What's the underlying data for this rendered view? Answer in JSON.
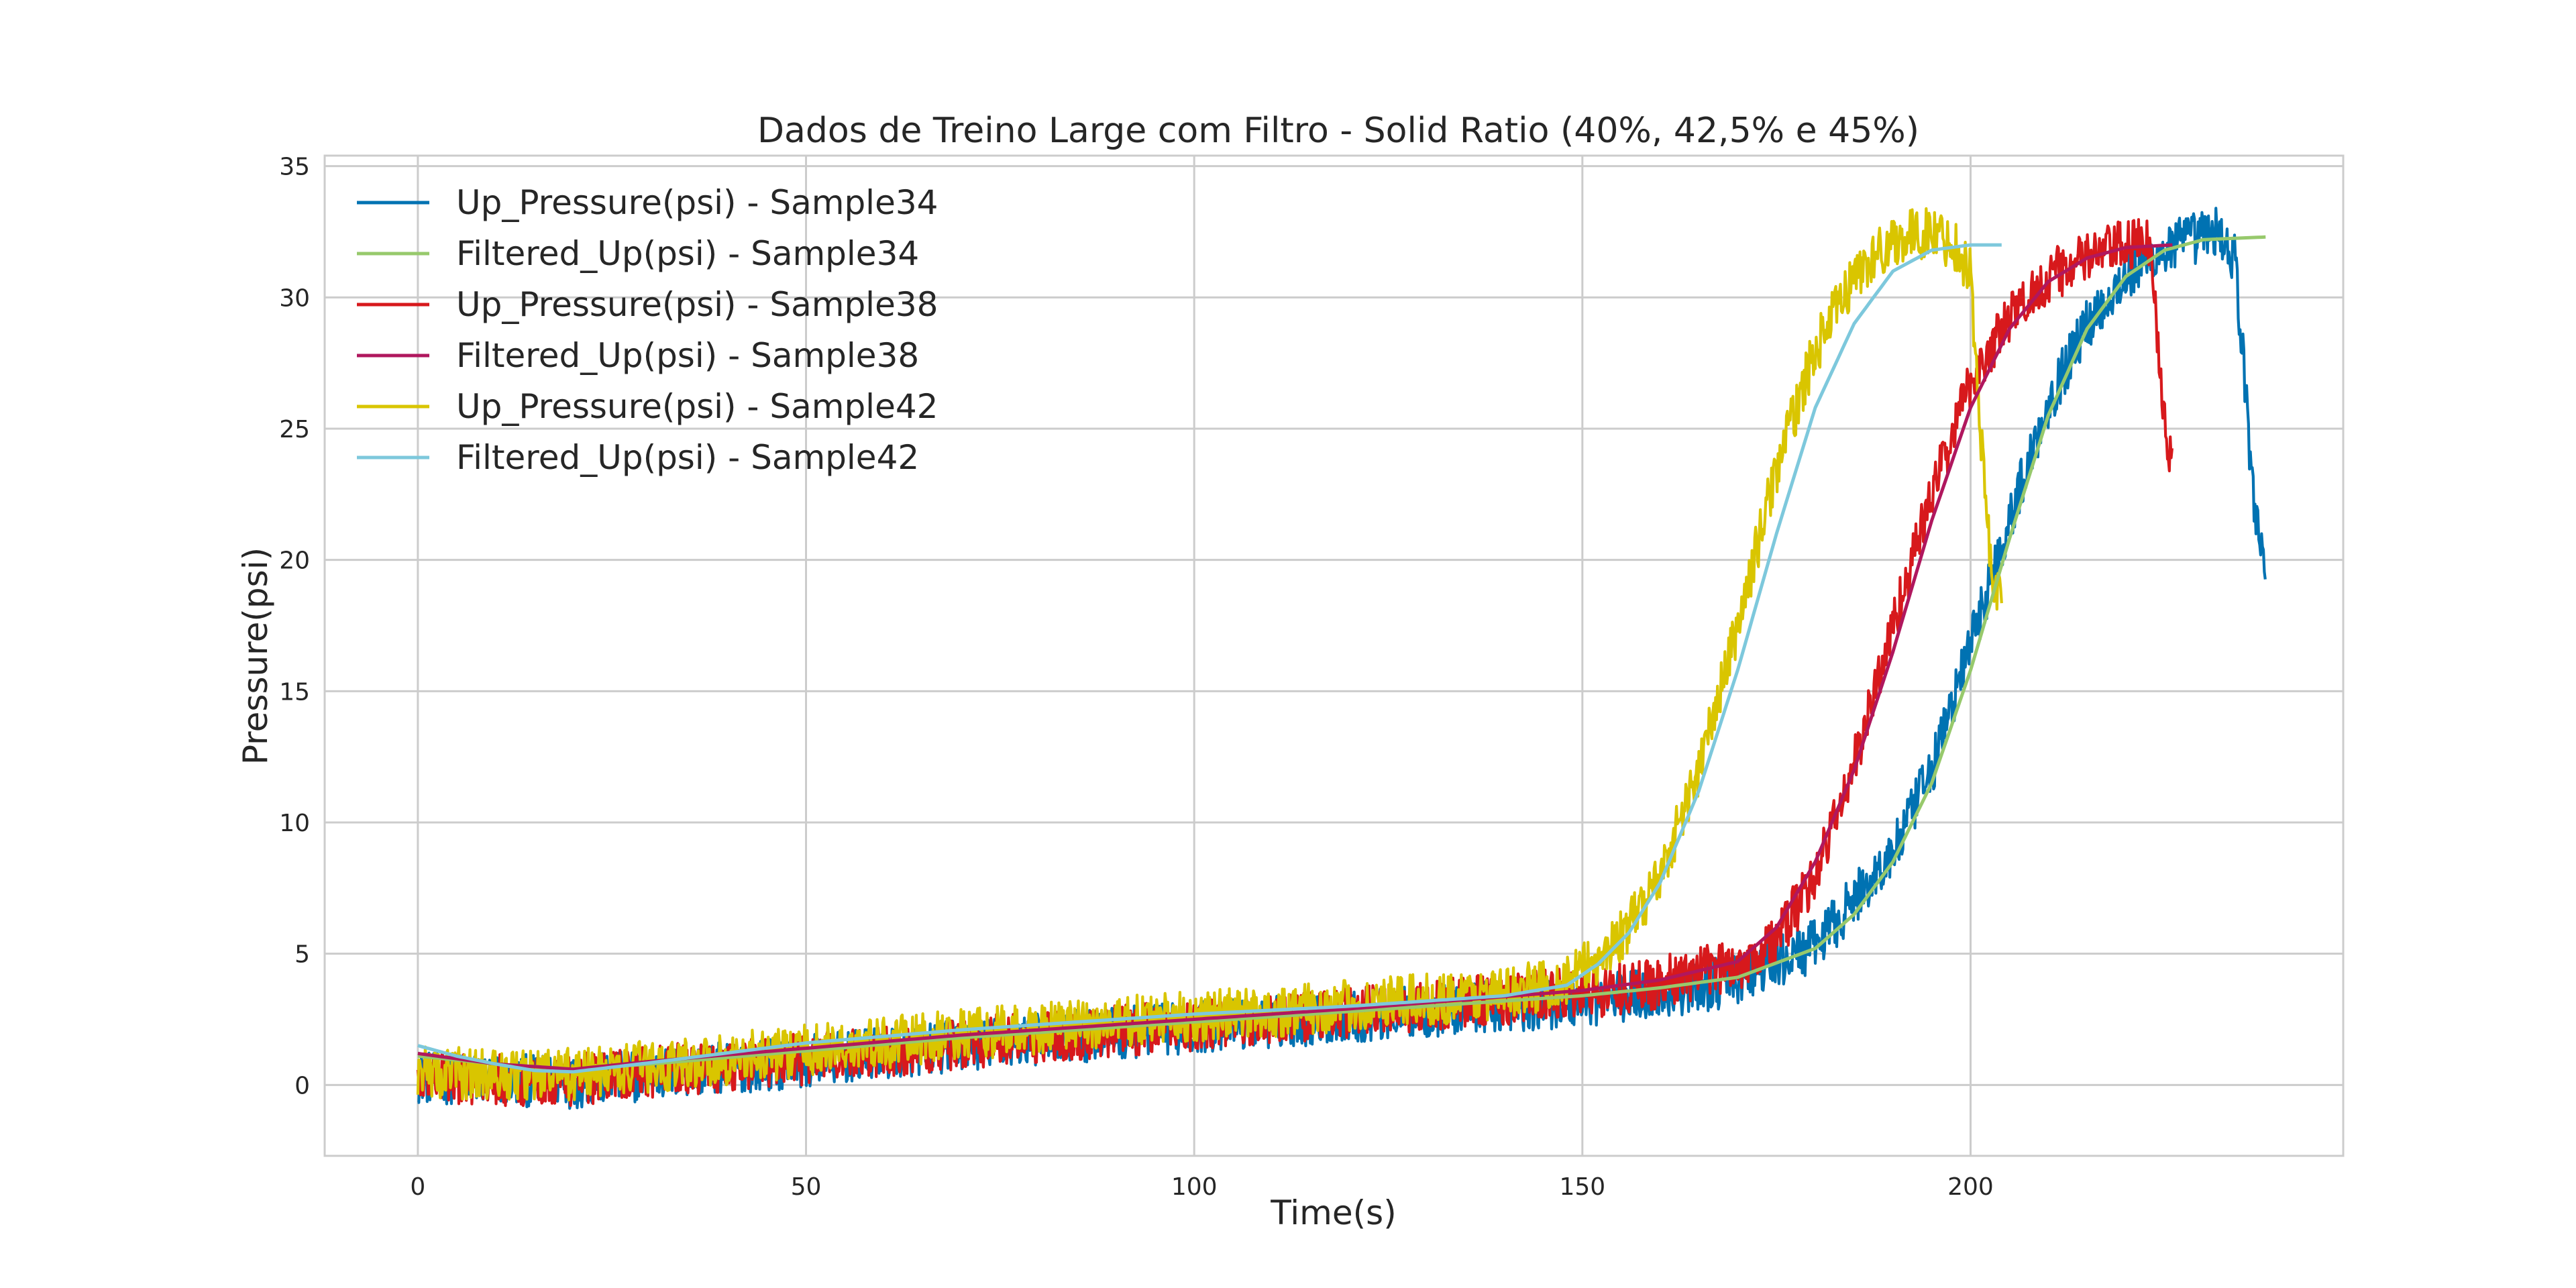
{
  "chart_data": {
    "type": "line",
    "title": "Dados de Treino Large com Filtro - Solid Ratio (40%, 42,5% e 45%)",
    "xlabel": "Time(s)",
    "ylabel": "Pressure(psi)",
    "xlim": [
      -12,
      248
    ],
    "ylim": [
      -2.7,
      35.4
    ],
    "xticks": [
      0,
      50,
      100,
      150,
      200
    ],
    "yticks": [
      0,
      5,
      10,
      15,
      20,
      25,
      30,
      35
    ],
    "grid": true,
    "legend_position": "top-left",
    "series": [
      {
        "name": "Up_Pressure(psi) - Sample34",
        "color": "#0072b2",
        "kind": "raw",
        "noise": 1.0,
        "x": [
          0,
          10,
          20,
          30,
          50,
          70,
          100,
          120,
          150,
          160,
          170,
          180,
          190,
          195,
          200,
          205,
          210,
          215,
          220,
          225,
          228,
          232,
          234,
          235,
          236,
          237,
          238
        ],
        "y": [
          0.3,
          0.2,
          0.1,
          0.4,
          0.9,
          1.5,
          2.2,
          2.6,
          3.2,
          3.5,
          4.0,
          5.3,
          8.8,
          12.0,
          16.8,
          21.5,
          26.0,
          29.0,
          30.8,
          31.8,
          32.2,
          32.5,
          31.5,
          28.0,
          24.0,
          21.0,
          20.0
        ]
      },
      {
        "name": "Filtered_Up(psi) - Sample34",
        "color": "#97c96c",
        "kind": "filtered",
        "x": [
          0,
          10,
          20,
          30,
          50,
          70,
          100,
          120,
          150,
          160,
          170,
          180,
          185,
          190,
          195,
          200,
          205,
          210,
          215,
          220,
          225,
          230,
          238
        ],
        "y": [
          1.1,
          0.8,
          0.6,
          0.8,
          1.3,
          1.8,
          2.4,
          2.8,
          3.4,
          3.7,
          4.1,
          5.2,
          6.5,
          8.5,
          11.5,
          15.8,
          20.8,
          25.5,
          28.8,
          30.8,
          31.8,
          32.2,
          32.3
        ]
      },
      {
        "name": "Up_Pressure(psi) - Sample38",
        "color": "#d7191c",
        "kind": "raw",
        "noise": 1.0,
        "x": [
          0,
          10,
          20,
          30,
          50,
          70,
          100,
          120,
          150,
          160,
          170,
          175,
          180,
          185,
          190,
          195,
          200,
          205,
          210,
          215,
          220,
          223,
          224,
          225,
          226
        ],
        "y": [
          0.3,
          0.2,
          0.2,
          0.5,
          1.0,
          1.6,
          2.3,
          2.8,
          3.5,
          3.9,
          4.6,
          5.5,
          8.0,
          12.2,
          17.5,
          22.5,
          26.8,
          29.2,
          30.8,
          31.5,
          32.0,
          32.0,
          29.0,
          25.5,
          23.5
        ]
      },
      {
        "name": "Filtered_Up(psi) - Sample38",
        "color": "#b0175e",
        "kind": "filtered",
        "x": [
          0,
          10,
          20,
          30,
          50,
          70,
          100,
          120,
          150,
          160,
          170,
          175,
          180,
          185,
          190,
          195,
          200,
          205,
          210,
          215,
          220,
          226
        ],
        "y": [
          1.2,
          0.8,
          0.6,
          0.9,
          1.4,
          1.9,
          2.5,
          2.9,
          3.6,
          4.0,
          4.7,
          6.0,
          8.5,
          12.0,
          16.5,
          21.5,
          25.8,
          28.8,
          30.6,
          31.5,
          31.9,
          32.0
        ]
      },
      {
        "name": "Up_Pressure(psi) - Sample42",
        "color": "#d9c500",
        "kind": "raw",
        "noise": 1.0,
        "x": [
          0,
          10,
          20,
          30,
          50,
          70,
          100,
          120,
          140,
          148,
          152,
          156,
          160,
          165,
          170,
          175,
          180,
          185,
          190,
          195,
          198,
          200,
          201,
          202,
          203,
          204
        ],
        "y": [
          0.5,
          0.4,
          0.4,
          0.7,
          1.3,
          1.9,
          2.6,
          3.0,
          3.5,
          4.0,
          4.8,
          6.0,
          8.0,
          12.0,
          17.5,
          23.5,
          28.0,
          30.8,
          32.2,
          32.5,
          32.0,
          31.0,
          26.0,
          22.0,
          19.0,
          18.5
        ]
      },
      {
        "name": "Filtered_Up(psi) - Sample42",
        "color": "#7dc8dc",
        "kind": "filtered",
        "x": [
          0,
          5,
          10,
          15,
          20,
          30,
          50,
          70,
          100,
          120,
          140,
          148,
          152,
          156,
          160,
          165,
          170,
          175,
          180,
          185,
          190,
          195,
          200,
          204
        ],
        "y": [
          1.5,
          1.1,
          0.8,
          0.55,
          0.5,
          0.85,
          1.6,
          2.1,
          2.7,
          3.0,
          3.4,
          3.8,
          4.6,
          5.8,
          7.7,
          11.2,
          15.8,
          21.0,
          25.8,
          29.0,
          31.0,
          31.8,
          32.0,
          32.0
        ]
      }
    ]
  }
}
